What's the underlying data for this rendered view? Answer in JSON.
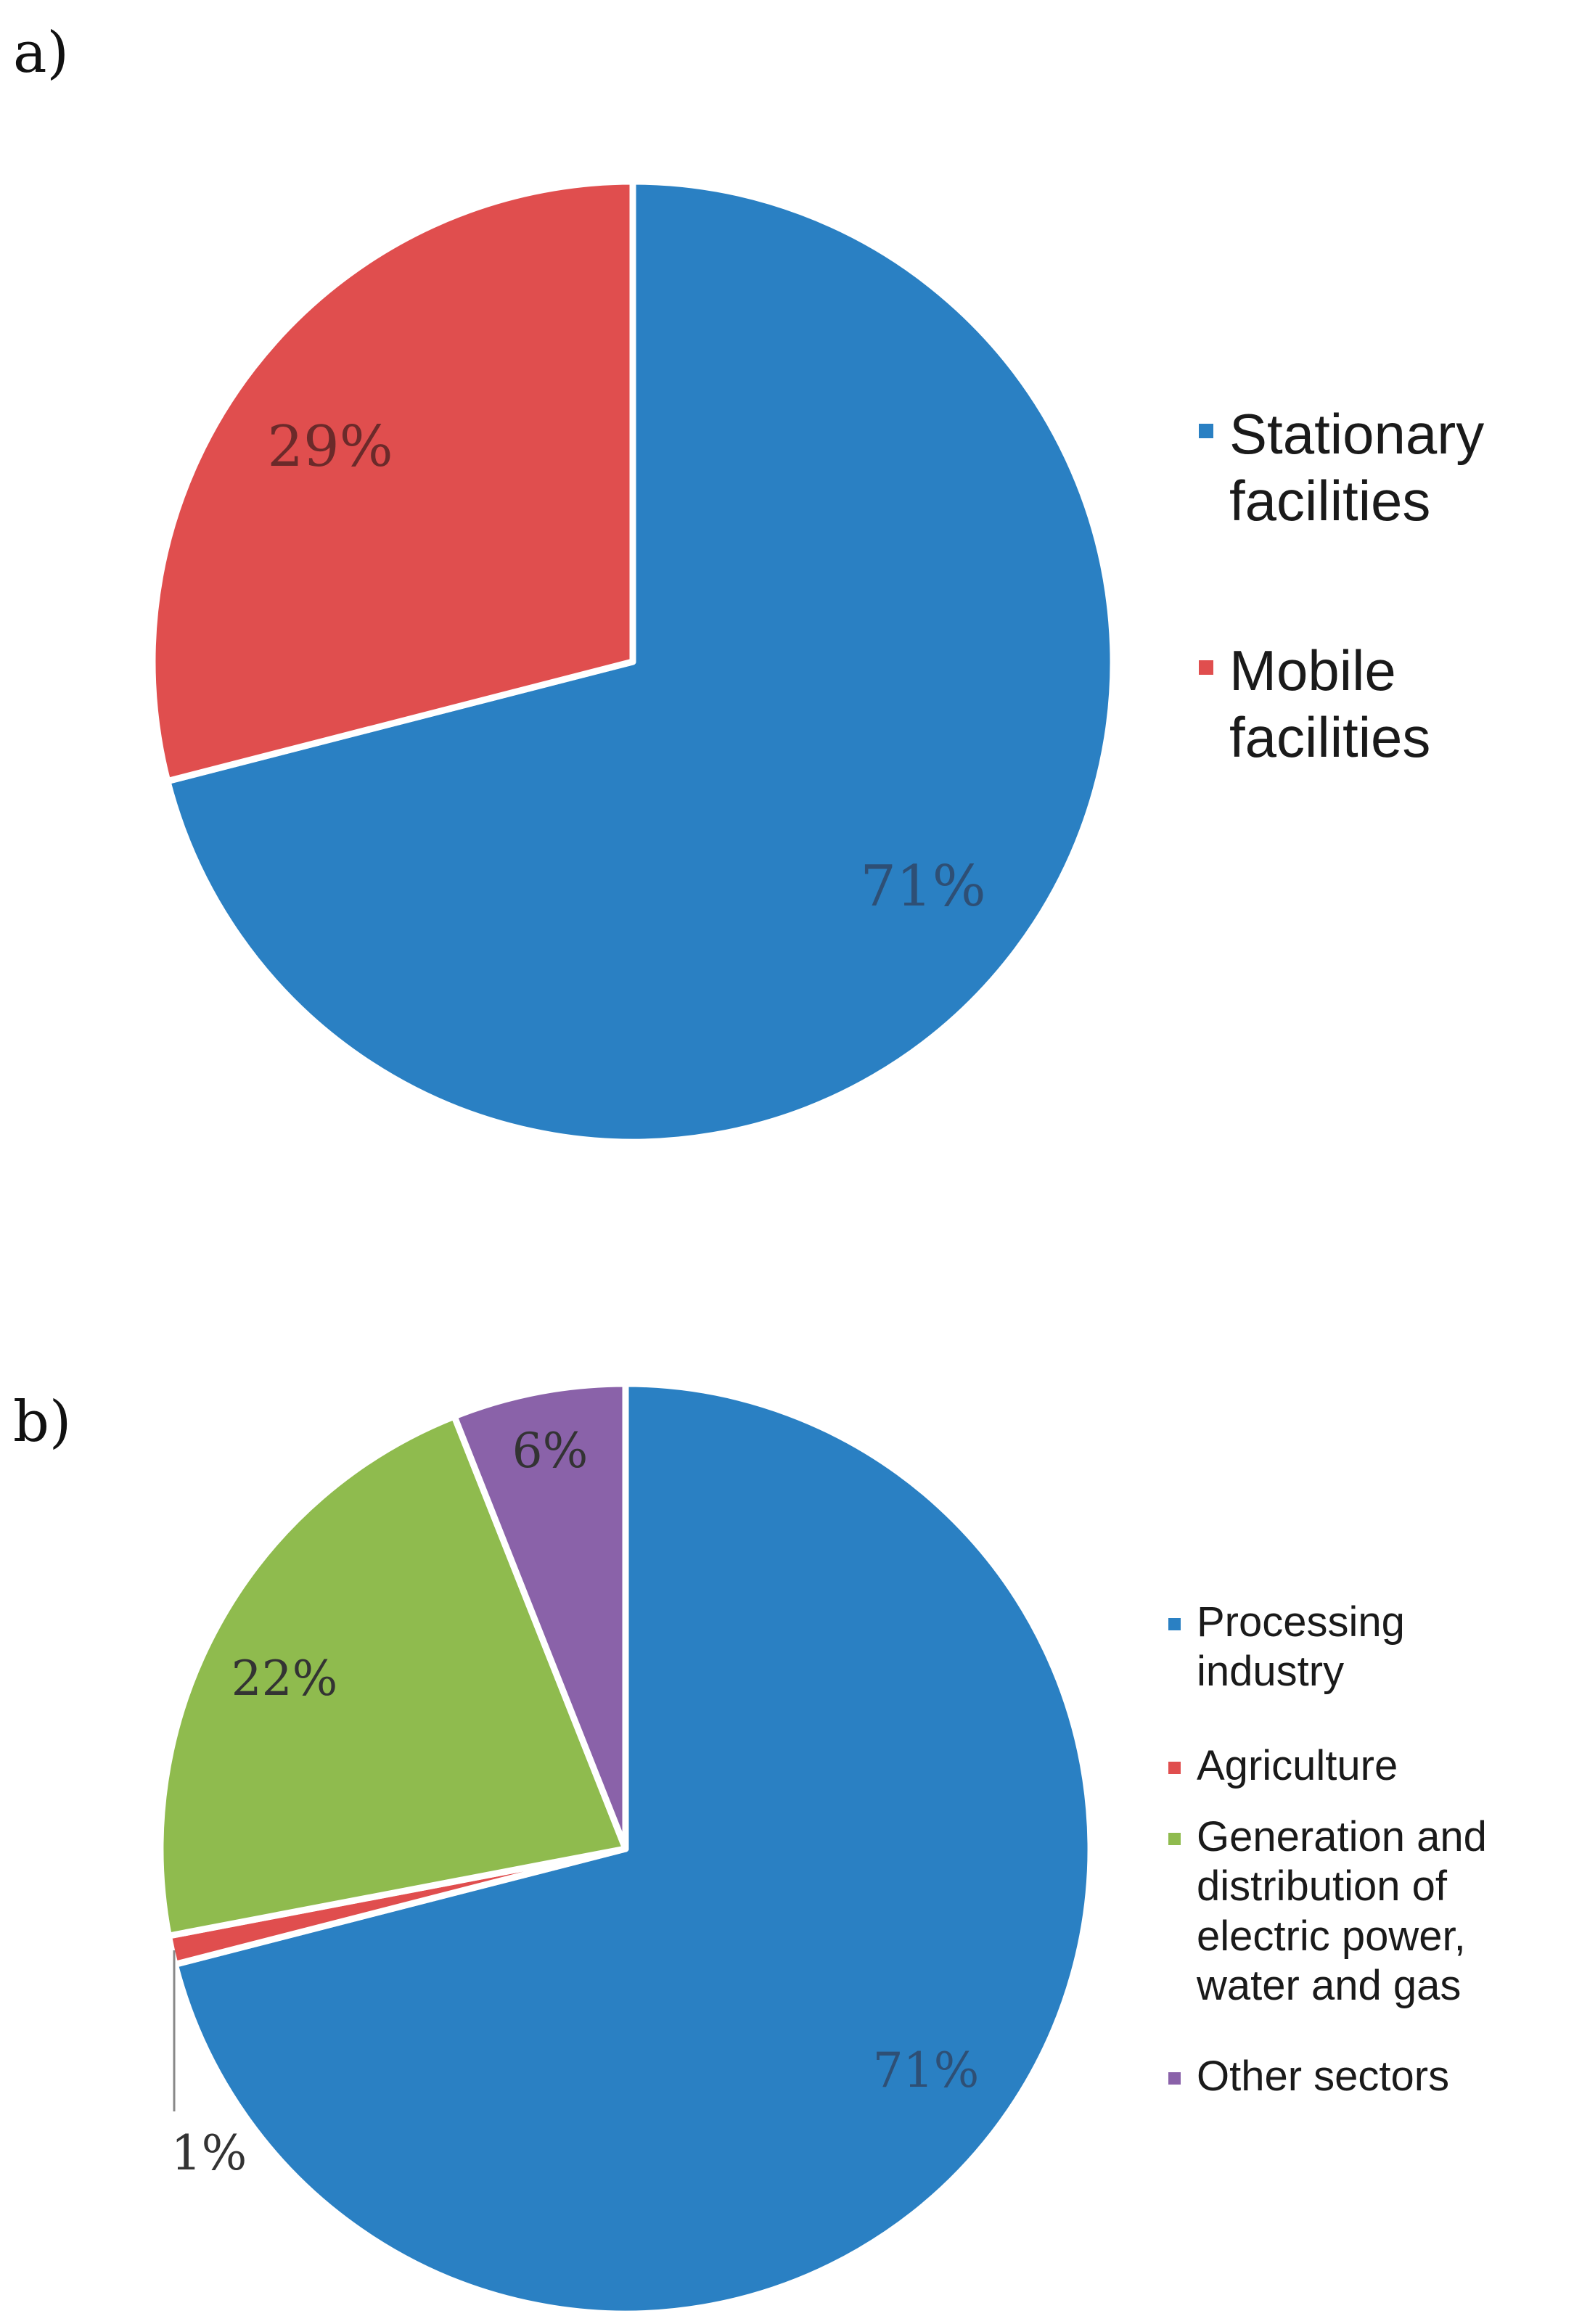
{
  "chart_data": [
    {
      "type": "pie",
      "panel_label": "a)",
      "categories": [
        "Stationary facilities",
        "Mobile facilities"
      ],
      "values": [
        71,
        29
      ],
      "data_labels": [
        "71%",
        "29%"
      ],
      "colors": [
        "#2a80c3",
        "#e04e4e"
      ],
      "legend_position": "right"
    },
    {
      "type": "pie",
      "panel_label": "b)",
      "categories": [
        "Processing industry",
        "Agriculture",
        "Generation and distribution of electric power, water and gas",
        "Other sectors"
      ],
      "values": [
        71,
        1,
        22,
        6
      ],
      "data_labels": [
        "71%",
        "1%",
        "22%",
        "6%"
      ],
      "colors": [
        "#2a80c3",
        "#e04e4e",
        "#8fbb4e",
        "#8a62a9"
      ],
      "legend_position": "right"
    }
  ]
}
